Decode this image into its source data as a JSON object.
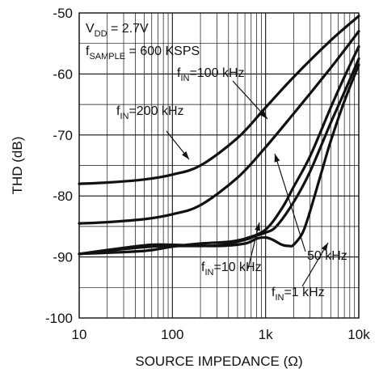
{
  "chart_data": {
    "type": "line",
    "xlabel": "SOURCE IMPEDANCE (Ω)",
    "ylabel": "THD (dB)",
    "x_scale": "log",
    "xlim": [
      10,
      10000
    ],
    "ylim": [
      -100,
      -50
    ],
    "grid": true,
    "x_ticks": [
      10,
      100,
      1000,
      10000
    ],
    "x_tick_labels": [
      "10",
      "100",
      "1k",
      "10k"
    ],
    "y_ticks": [
      -100,
      -90,
      -80,
      -70,
      -60,
      -50
    ],
    "y_tick_labels": [
      "-100",
      "-90",
      "-80",
      "-70",
      "-60",
      "-50"
    ],
    "conditions": [
      {
        "main": "V",
        "sub": "DD",
        "rest": " = 2.7V"
      },
      {
        "main": "f",
        "sub": "SAMPLE",
        "rest": " = 600 KSPS"
      }
    ],
    "series": [
      {
        "name": "200 kHz",
        "label": {
          "main": "f",
          "sub": "IN",
          "rest": "=200 kHz"
        },
        "x": [
          10,
          20,
          50,
          100,
          200,
          500,
          1000,
          2000,
          5000,
          10000
        ],
        "y": [
          -78,
          -77.8,
          -77.3,
          -76.5,
          -75,
          -70.5,
          -65.5,
          -60.5,
          -54.5,
          -50.5
        ]
      },
      {
        "name": "100 kHz",
        "label": {
          "main": "f",
          "sub": "IN",
          "rest": "=100 kHz"
        },
        "x": [
          10,
          20,
          50,
          100,
          200,
          500,
          1000,
          2000,
          5000,
          10000
        ],
        "y": [
          -84.5,
          -84.3,
          -83.8,
          -83,
          -81.5,
          -77,
          -72,
          -66.5,
          -59,
          -53
        ]
      },
      {
        "name": "50 kHz",
        "label": {
          "main": "",
          "sub": "",
          "rest": "50 kHz"
        },
        "x": [
          10,
          50,
          100,
          200,
          400,
          600,
          1000,
          1500,
          2000,
          3000,
          5000,
          7000,
          10000
        ],
        "y": [
          -89.5,
          -89,
          -88.3,
          -87.8,
          -87.5,
          -87,
          -85.5,
          -82,
          -78.5,
          -73.5,
          -65.5,
          -60.5,
          -55.5
        ]
      },
      {
        "name": "10 kHz",
        "label": {
          "main": "f",
          "sub": "IN",
          "rest": "=10 kHz"
        },
        "x": [
          10,
          30,
          60,
          100,
          300,
          600,
          800,
          1000,
          1300,
          2000,
          3000,
          5000,
          7000,
          10000
        ],
        "y": [
          -89.5,
          -88.7,
          -88.3,
          -88.2,
          -88.1,
          -87.2,
          -86.5,
          -86,
          -85,
          -81,
          -76,
          -68,
          -63,
          -57.5
        ]
      },
      {
        "name": "1 kHz",
        "label": {
          "main": "f",
          "sub": "IN",
          "rest": "=1 kHz"
        },
        "x": [
          10,
          30,
          60,
          100,
          300,
          600,
          800,
          1000,
          1200,
          1500,
          1800,
          2000,
          2500,
          3000,
          4000,
          5000,
          7000,
          10000
        ],
        "y": [
          -89.5,
          -88.5,
          -88,
          -88,
          -88.2,
          -87.8,
          -87,
          -86.8,
          -87.2,
          -88,
          -88.2,
          -88,
          -86,
          -82.5,
          -76,
          -71,
          -64.5,
          -58.5
        ]
      }
    ]
  }
}
